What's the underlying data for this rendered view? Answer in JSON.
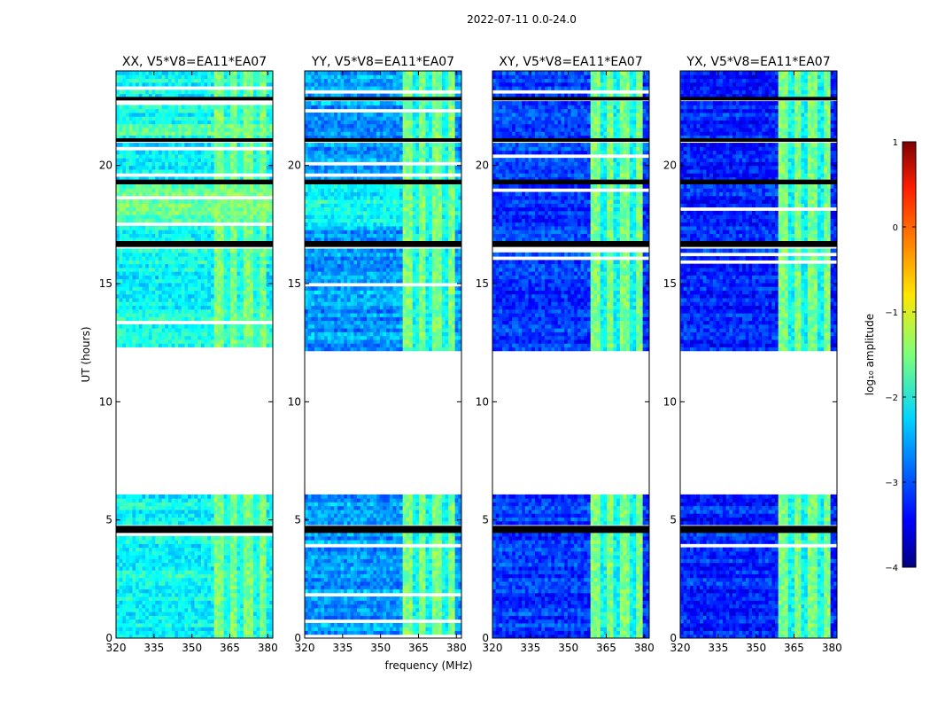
{
  "chart_data": {
    "type": "heatmap",
    "suptitle": "2022-07-11 0.0-24.0",
    "xlabel": "frequency (MHz)",
    "ylabel": "UT (hours)",
    "xlim": [
      320,
      382
    ],
    "ylim": [
      0,
      24
    ],
    "xticks": [
      "320",
      "335",
      "350",
      "365",
      "380"
    ],
    "yticks": [
      "0",
      "5",
      "10",
      "15",
      "20"
    ],
    "panels": [
      {
        "title": "XX, V5*V8=EA11*EA07",
        "base_level": -2.1
      },
      {
        "title": "YY, V5*V8=EA11*EA07",
        "base_level": -2.6
      },
      {
        "title": "XY, V5*V8=EA11*EA07",
        "base_level": -3.1
      },
      {
        "title": "YX, V5*V8=EA11*EA07",
        "base_level": -3.2
      }
    ],
    "rfi_band_mhz": [
      359,
      380
    ],
    "rfi_level": -1.4,
    "data_gap_hours": [
      6.0,
      12.2
    ],
    "flagged_hours": [
      4.45,
      4.75,
      16.55,
      16.8,
      22.75,
      22.9,
      21.0,
      21.15,
      19.2,
      19.4
    ],
    "colorbar": {
      "label": "log₁₀ amplitude",
      "range": [
        -4,
        1
      ],
      "ticks": [
        "1",
        "0",
        "−1",
        "−2",
        "−3",
        "−4"
      ],
      "colormap": "jet"
    }
  }
}
